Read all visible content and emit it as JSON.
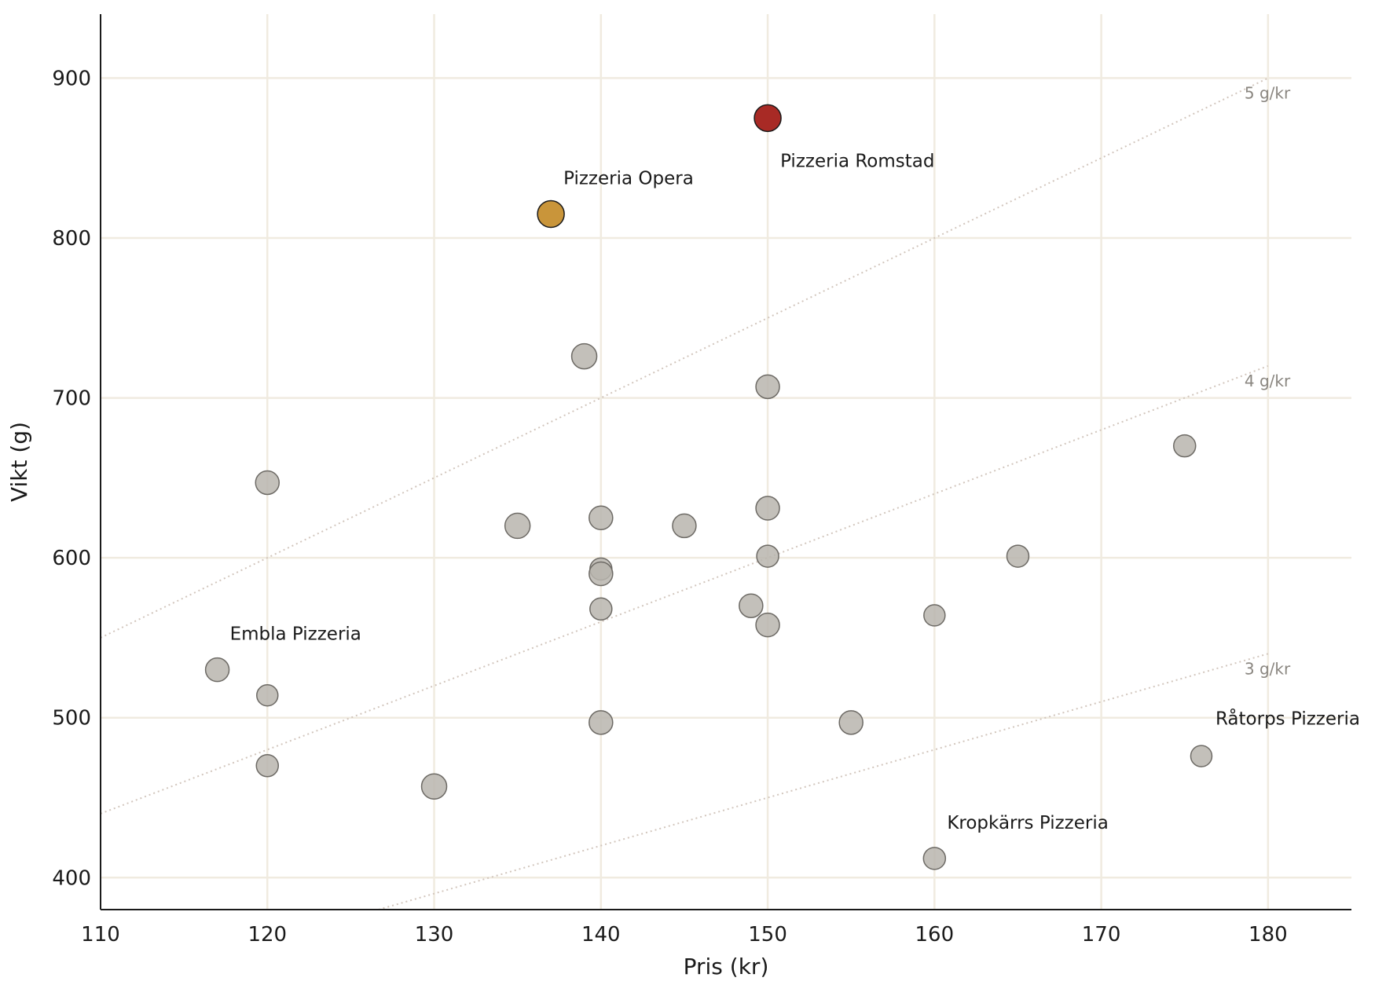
{
  "chart_data": {
    "type": "scatter",
    "xlabel": "Pris (kr)",
    "ylabel": "Vikt (g)",
    "xlim": [
      110,
      185
    ],
    "ylim": [
      380,
      940
    ],
    "xticks": [
      110,
      120,
      130,
      140,
      150,
      160,
      170,
      180
    ],
    "yticks": [
      400,
      500,
      600,
      700,
      800,
      900
    ],
    "grid": true,
    "colors": {
      "default": "#b8b5ae",
      "highlight_best": "#a82a25",
      "highlight_second": "#c9953a"
    },
    "reference_lines": [
      {
        "label": "5 g/kr",
        "ratio": 5
      },
      {
        "label": "4 g/kr",
        "ratio": 4
      },
      {
        "label": "3 g/kr",
        "ratio": 3
      }
    ],
    "points": [
      {
        "x": 150,
        "y": 875,
        "size": 34,
        "highlight": "best",
        "label": "Pizzeria Romstad"
      },
      {
        "x": 137,
        "y": 815,
        "size": 34,
        "highlight": "second",
        "label": "Pizzeria Opera"
      },
      {
        "x": 139,
        "y": 726,
        "size": 32
      },
      {
        "x": 150,
        "y": 707,
        "size": 30
      },
      {
        "x": 175,
        "y": 670,
        "size": 28
      },
      {
        "x": 120,
        "y": 647,
        "size": 30
      },
      {
        "x": 140,
        "y": 625,
        "size": 30
      },
      {
        "x": 150,
        "y": 631,
        "size": 30
      },
      {
        "x": 135,
        "y": 620,
        "size": 32
      },
      {
        "x": 145,
        "y": 620,
        "size": 30
      },
      {
        "x": 150,
        "y": 601,
        "size": 28
      },
      {
        "x": 165,
        "y": 601,
        "size": 28
      },
      {
        "x": 140,
        "y": 593,
        "size": 28
      },
      {
        "x": 140,
        "y": 590,
        "size": 30
      },
      {
        "x": 149,
        "y": 570,
        "size": 30
      },
      {
        "x": 140,
        "y": 568,
        "size": 28
      },
      {
        "x": 160,
        "y": 564,
        "size": 27
      },
      {
        "x": 150,
        "y": 558,
        "size": 30
      },
      {
        "x": 117,
        "y": 530,
        "size": 30,
        "label": "Embla Pizzeria"
      },
      {
        "x": 120,
        "y": 514,
        "size": 27
      },
      {
        "x": 140,
        "y": 497,
        "size": 30
      },
      {
        "x": 155,
        "y": 497,
        "size": 30
      },
      {
        "x": 176,
        "y": 476,
        "size": 27,
        "label": "Råtorps Pizzeria"
      },
      {
        "x": 120,
        "y": 470,
        "size": 28
      },
      {
        "x": 130,
        "y": 457,
        "size": 32
      },
      {
        "x": 160,
        "y": 412,
        "size": 28,
        "label": "Kropkärrs Pizzeria"
      }
    ]
  }
}
